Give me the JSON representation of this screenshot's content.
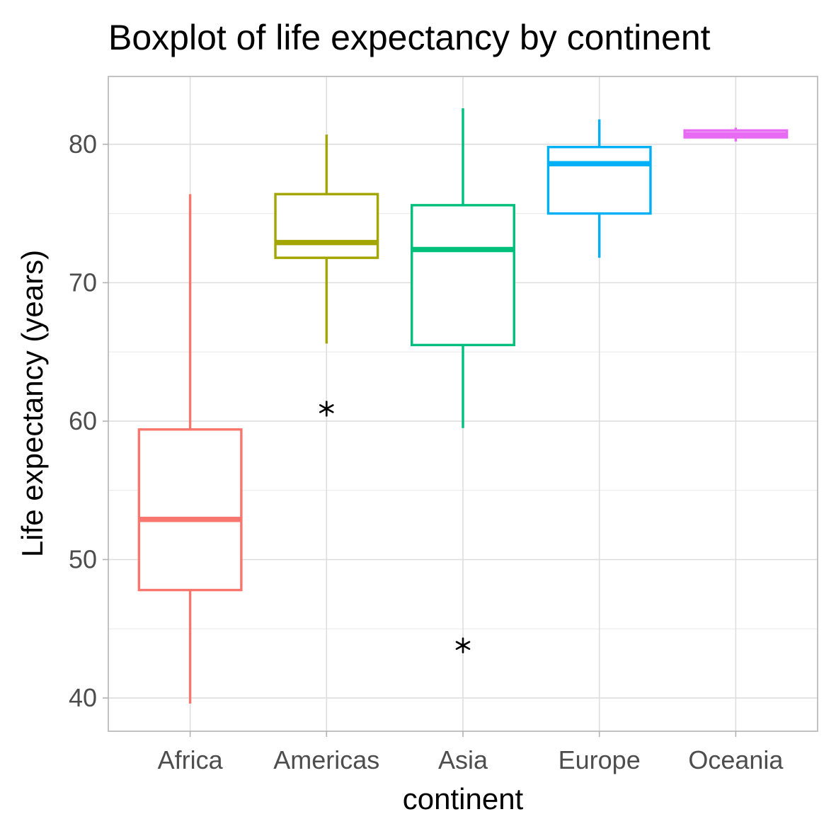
{
  "chart_data": {
    "type": "boxplot",
    "title": "Boxplot of life expectancy by continent",
    "xlabel": "continent",
    "ylabel": "Life expectancy (years)",
    "ylim": [
      37.6,
      84.9
    ],
    "yticks": [
      40,
      50,
      60,
      70,
      80
    ],
    "grid": true,
    "outlier_marker": "asterisk",
    "outlier_color": "#000000",
    "categories": [
      "Africa",
      "Americas",
      "Asia",
      "Europe",
      "Oceania"
    ],
    "boxes": [
      {
        "category": "Africa",
        "color": "#F8766D",
        "whisker_low": 39.6,
        "q1": 47.8,
        "median": 52.9,
        "q3": 59.4,
        "whisker_high": 76.4,
        "outliers": []
      },
      {
        "category": "Americas",
        "color": "#A3A500",
        "whisker_low": 65.6,
        "q1": 71.8,
        "median": 72.9,
        "q3": 76.4,
        "whisker_high": 80.7,
        "outliers": [
          60.9
        ]
      },
      {
        "category": "Asia",
        "color": "#00BF7D",
        "whisker_low": 59.5,
        "q1": 65.5,
        "median": 72.4,
        "q3": 75.6,
        "whisker_high": 82.6,
        "outliers": [
          43.8
        ]
      },
      {
        "category": "Europe",
        "color": "#00B0F6",
        "whisker_low": 71.8,
        "q1": 75.0,
        "median": 78.6,
        "q3": 79.8,
        "whisker_high": 81.8,
        "outliers": []
      },
      {
        "category": "Oceania",
        "color": "#E76BF3",
        "whisker_low": 80.2,
        "q1": 80.5,
        "median": 80.7,
        "q3": 81.0,
        "whisker_high": 81.2,
        "outliers": []
      }
    ]
  }
}
